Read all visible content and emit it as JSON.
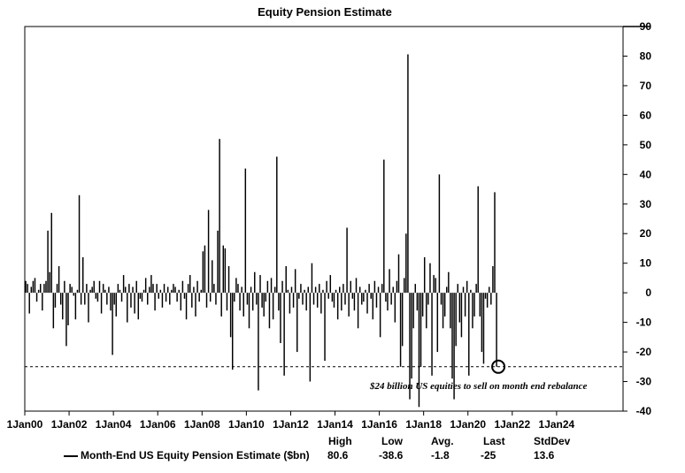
{
  "chart_data": {
    "type": "bar",
    "title": "Equity Pension Estimate",
    "ylim": [
      -40,
      90
    ],
    "yticks": [
      90,
      80,
      70,
      60,
      50,
      40,
      30,
      20,
      10,
      0,
      -10,
      -20,
      -30,
      -40
    ],
    "xtick_labels": [
      "1Jan00",
      "1Jan02",
      "1Jan04",
      "1Jan06",
      "1Jan08",
      "1Jan10",
      "1Jan12",
      "1Jan14",
      "1Jan16",
      "1Jan18",
      "1Jan20",
      "1Jan22",
      "1Jan24"
    ],
    "x_start": "2000-01",
    "x_end": "2026-12",
    "reference_line": {
      "value": -25,
      "style": "dashed"
    },
    "annotation": "$24 billion US equities to sell on month end rebalance",
    "series": [
      {
        "name": "Month-End US Equity Pension Estimate ($bn)",
        "start": "2000-01",
        "values": [
          4,
          3,
          -7,
          2,
          4,
          5,
          -3,
          1,
          3,
          -6,
          3,
          4,
          21,
          7,
          27,
          -12,
          -5,
          3,
          9,
          -4,
          -9,
          4,
          -18,
          -11,
          3,
          2,
          -1,
          -9,
          1,
          33,
          -4,
          12,
          -4,
          3,
          -10,
          1,
          2,
          4,
          -2,
          -3,
          4,
          -7,
          3,
          1,
          -4,
          2,
          -6,
          -21,
          -4,
          -8,
          3,
          1,
          -3,
          6,
          2,
          -10,
          3,
          -5,
          2,
          -7,
          4,
          -9,
          -2,
          -3,
          1,
          5,
          -4,
          2,
          6,
          3,
          -6,
          3,
          -2,
          1,
          -5,
          3,
          -3,
          2,
          -4,
          1,
          3,
          2,
          -3,
          1,
          -6,
          4,
          -2,
          -9,
          3,
          6,
          -5,
          2,
          -8,
          4,
          -3,
          1,
          14,
          16,
          -5,
          28,
          -3,
          11,
          3,
          -4,
          21,
          52,
          -8,
          16,
          15,
          -6,
          9,
          -15,
          -26,
          -3,
          5,
          3,
          -6,
          2,
          -8,
          42,
          -4,
          -12,
          2,
          -6,
          7,
          -4,
          -33,
          6,
          -5,
          -8,
          -3,
          4,
          -12,
          5,
          -9,
          2,
          46,
          -6,
          -17,
          4,
          -28,
          9,
          1,
          -7,
          2,
          -5,
          8,
          -20,
          -2,
          3,
          -4,
          1,
          -6,
          2,
          -30,
          10,
          -4,
          2,
          -5,
          3,
          -7,
          1,
          -23,
          4,
          -2,
          6,
          -3,
          -5,
          1,
          -9,
          2,
          -6,
          3,
          -4,
          22,
          -8,
          4,
          -2,
          -6,
          5,
          -12,
          2,
          -4,
          -3,
          1,
          -7,
          3,
          -2,
          -9,
          4,
          -5,
          2,
          -15,
          3,
          45,
          -3,
          -6,
          8,
          -4,
          2,
          -10,
          4,
          13,
          -25,
          -18,
          5,
          20,
          80.6,
          -36,
          -29,
          -12,
          3,
          -6,
          -38.6,
          -25,
          -8,
          12,
          -12,
          -4,
          10,
          -28,
          6,
          5,
          -20,
          40,
          -4,
          -12,
          -8,
          2,
          7,
          -12,
          -29,
          -36,
          -18,
          3,
          -10,
          -15,
          2,
          -8,
          4,
          -28,
          1,
          -12,
          -8,
          3,
          36,
          -8,
          -20,
          -24,
          -2,
          -5,
          2,
          -4,
          9,
          34,
          -25
        ]
      }
    ],
    "stats_headers": [
      "High",
      "Low",
      "Avg.",
      "Last",
      "StdDev"
    ],
    "stats_values": [
      "80.6",
      "-38.6",
      "-1.8",
      "-25",
      "13.6"
    ]
  }
}
